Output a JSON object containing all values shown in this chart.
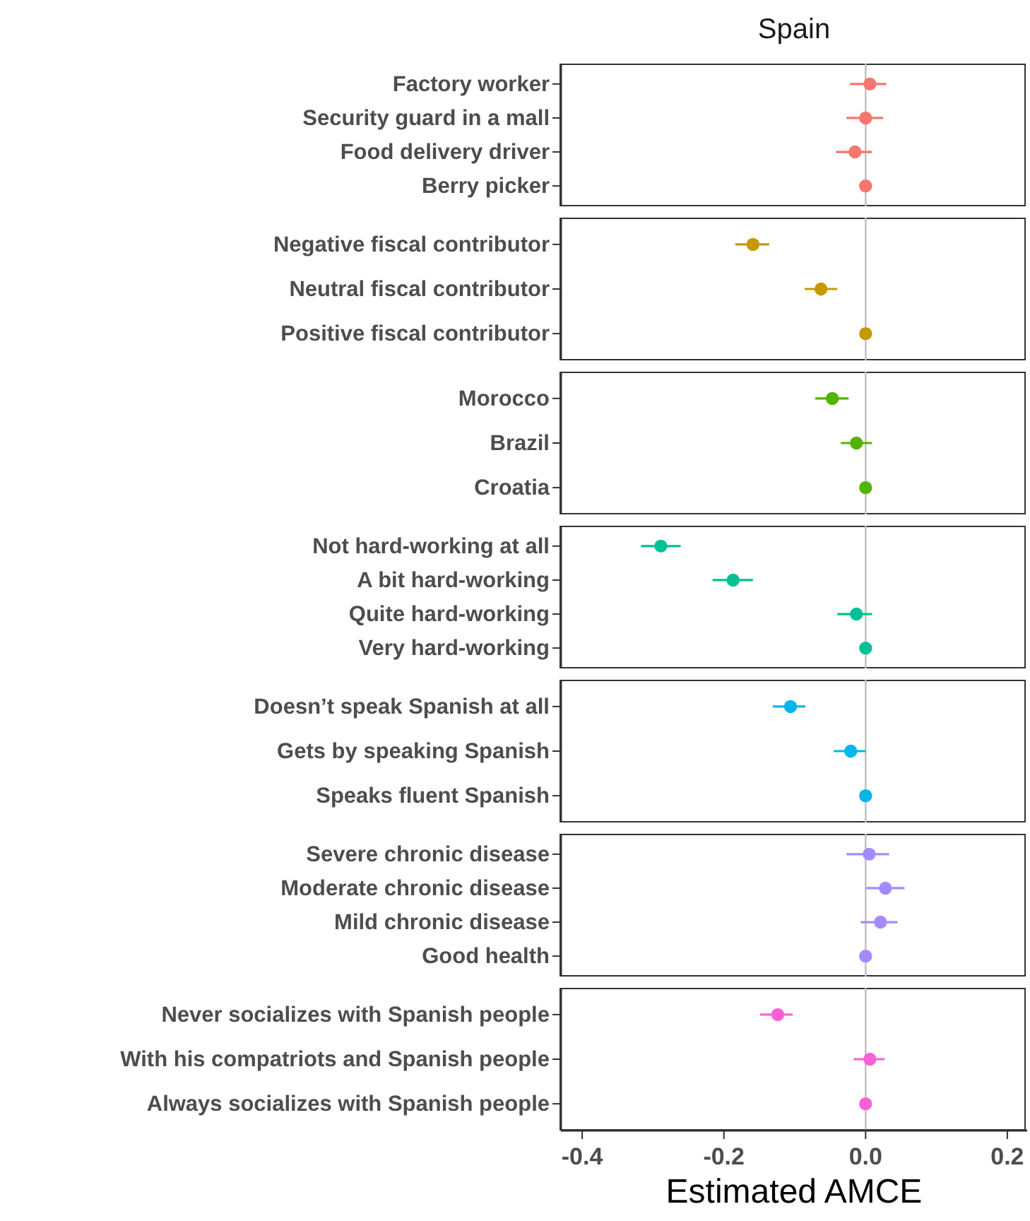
{
  "chart_data": [
    {
      "type": "scatter",
      "title": "Spain",
      "orientation": "horizontal",
      "marker": "circle",
      "tick_labels": "y",
      "categories": [
        "Factory worker",
        "Security guard in a mall",
        "Food delivery driver",
        "Berry picker"
      ],
      "color": "#f8766d",
      "values": [
        0.006,
        0.0,
        -0.015,
        0.0
      ],
      "errors": [
        [
          -0.022,
          0.029
        ],
        [
          -0.027,
          0.025
        ],
        [
          -0.042,
          0.009
        ],
        null
      ],
      "xlim": [
        -0.43,
        0.228
      ],
      "ref_lines": [
        {
          "axis": "x",
          "value": 0,
          "color": "#bebebe"
        }
      ]
    },
    {
      "type": "scatter",
      "orientation": "horizontal",
      "marker": "circle",
      "tick_labels": "y",
      "categories": [
        "Negative fiscal contributor",
        "Neutral fiscal contributor",
        "Positive fiscal contributor"
      ],
      "color": "#c49a00",
      "values": [
        -0.159,
        -0.063,
        0.0
      ],
      "errors": [
        [
          -0.184,
          -0.136
        ],
        [
          -0.086,
          -0.04
        ],
        null
      ],
      "xlim": [
        -0.43,
        0.228
      ],
      "ref_lines": [
        {
          "axis": "x",
          "value": 0,
          "color": "#bebebe"
        }
      ]
    },
    {
      "type": "scatter",
      "orientation": "horizontal",
      "marker": "circle",
      "tick_labels": "y",
      "categories": [
        "Morocco",
        "Brazil",
        "Croatia"
      ],
      "color": "#53b400",
      "values": [
        -0.047,
        -0.013,
        0.0
      ],
      "errors": [
        [
          -0.071,
          -0.024
        ],
        [
          -0.035,
          0.009
        ],
        null
      ],
      "xlim": [
        -0.43,
        0.228
      ],
      "ref_lines": [
        {
          "axis": "x",
          "value": 0,
          "color": "#bebebe"
        }
      ]
    },
    {
      "type": "scatter",
      "orientation": "horizontal",
      "marker": "circle",
      "tick_labels": "y",
      "categories": [
        "Not hard-working at all",
        "A bit hard-working",
        "Quite hard-working",
        "Very hard-working"
      ],
      "color": "#00c094",
      "values": [
        -0.289,
        -0.187,
        -0.013,
        0.0
      ],
      "errors": [
        [
          -0.317,
          -0.261
        ],
        [
          -0.216,
          -0.159
        ],
        [
          -0.04,
          0.009
        ],
        null
      ],
      "xlim": [
        -0.43,
        0.228
      ],
      "ref_lines": [
        {
          "axis": "x",
          "value": 0,
          "color": "#bebebe"
        }
      ]
    },
    {
      "type": "scatter",
      "orientation": "horizontal",
      "marker": "circle",
      "tick_labels": "y",
      "categories": [
        "Doesn’t speak Spanish at all",
        "Gets by speaking Spanish",
        "Speaks fluent Spanish"
      ],
      "color": "#00b6eb",
      "values": [
        -0.106,
        -0.021,
        0.0
      ],
      "errors": [
        [
          -0.131,
          -0.085
        ],
        [
          -0.045,
          0.0
        ],
        null
      ],
      "xlim": [
        -0.43,
        0.228
      ],
      "ref_lines": [
        {
          "axis": "x",
          "value": 0,
          "color": "#bebebe"
        }
      ]
    },
    {
      "type": "scatter",
      "orientation": "horizontal",
      "marker": "circle",
      "tick_labels": "y",
      "categories": [
        "Severe chronic disease",
        "Moderate chronic disease",
        "Mild chronic disease",
        "Good health"
      ],
      "color": "#a58aff",
      "values": [
        0.005,
        0.028,
        0.021,
        0.0
      ],
      "errors": [
        [
          -0.027,
          0.033
        ],
        [
          0.001,
          0.055
        ],
        [
          -0.007,
          0.045
        ],
        null
      ],
      "xlim": [
        -0.43,
        0.228
      ],
      "ref_lines": [
        {
          "axis": "x",
          "value": 0,
          "color": "#bebebe"
        }
      ]
    },
    {
      "type": "scatter",
      "orientation": "horizontal",
      "marker": "circle",
      "xlabel": "Estimated AMCE",
      "categories": [
        "Never socializes with Spanish people",
        "With his compatriots and Spanish people",
        "Always socializes with Spanish people"
      ],
      "color": "#fb61d7",
      "values": [
        -0.124,
        0.006,
        0.0
      ],
      "errors": [
        [
          -0.149,
          -0.103
        ],
        [
          -0.017,
          0.027
        ],
        null
      ],
      "xlim": [
        -0.43,
        0.228
      ],
      "xticks": [
        {
          "value": -0.4,
          "label": "-0.4"
        },
        {
          "value": -0.2,
          "label": "-0.2"
        },
        {
          "value": 0,
          "label": "0.0"
        },
        {
          "value": 0.2,
          "label": "0.2"
        }
      ],
      "ref_lines": [
        {
          "axis": "x",
          "value": 0,
          "color": "#bebebe"
        }
      ]
    }
  ]
}
